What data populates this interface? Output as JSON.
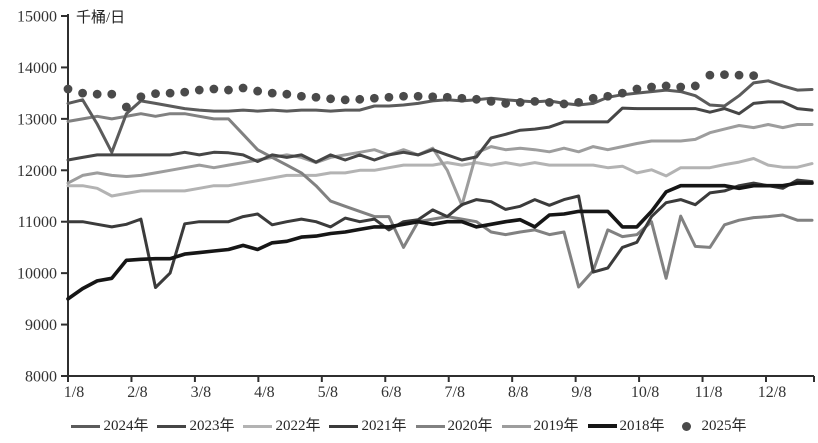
{
  "chart_data": {
    "type": "line",
    "title": "千桶/日",
    "xlabel": "",
    "ylabel": "千桶/日",
    "ylim": [
      8000,
      15000
    ],
    "y_ticks": [
      8000,
      9000,
      10000,
      11000,
      12000,
      13000,
      14000,
      15000
    ],
    "x_tick_labels": [
      "1/8",
      "2/8",
      "3/8",
      "4/8",
      "5/8",
      "6/8",
      "7/8",
      "8/8",
      "9/8",
      "10/8",
      "11/8",
      "12/8"
    ],
    "x_is_weekly": true,
    "weeks_total": 52,
    "grid": false,
    "legend_position": "bottom",
    "axis_color": "#2f2f2f",
    "tick_label_color": "#333333",
    "series": [
      {
        "name": "2024年",
        "color": "#5b5b5b",
        "style": "line",
        "width": 3,
        "values": [
          13300,
          13370,
          12900,
          12350,
          13100,
          13350,
          13300,
          13250,
          13200,
          13170,
          13150,
          13150,
          13170,
          13150,
          13170,
          13150,
          13170,
          13170,
          13150,
          13170,
          13170,
          13250,
          13250,
          13270,
          13300,
          13350,
          13370,
          13350,
          13370,
          13400,
          13370,
          13350,
          13330,
          13350,
          13300,
          13270,
          13300,
          13420,
          13470,
          13500,
          13530,
          13560,
          13530,
          13450,
          13270,
          13250,
          13450,
          13700,
          13740,
          13640,
          13560,
          13570
        ]
      },
      {
        "name": "2023年",
        "color": "#464646",
        "style": "line",
        "width": 3,
        "values": [
          12200,
          12250,
          12300,
          12300,
          12300,
          12300,
          12300,
          12300,
          12350,
          12300,
          12350,
          12340,
          12300,
          12170,
          12300,
          12250,
          12300,
          12160,
          12300,
          12200,
          12300,
          12200,
          12300,
          12350,
          12300,
          12400,
          12300,
          12200,
          12260,
          12630,
          12700,
          12780,
          12800,
          12840,
          12940,
          12940,
          12940,
          12940,
          13210,
          13200,
          13200,
          13200,
          13200,
          13200,
          13130,
          13200,
          13100,
          13300,
          13330,
          13330,
          13200,
          13170
        ]
      },
      {
        "name": "2022年",
        "color": "#b3b3b3",
        "style": "line",
        "width": 3,
        "values": [
          11700,
          11700,
          11650,
          11500,
          11550,
          11600,
          11600,
          11600,
          11600,
          11650,
          11700,
          11700,
          11750,
          11800,
          11850,
          11900,
          11900,
          11900,
          11950,
          11950,
          12000,
          12000,
          12050,
          12100,
          12100,
          12100,
          12150,
          12100,
          12150,
          12100,
          12150,
          12100,
          12150,
          12100,
          12100,
          12100,
          12100,
          12050,
          12080,
          11950,
          12010,
          11890,
          12050,
          12050,
          12050,
          12110,
          12160,
          12230,
          12100,
          12060,
          12060,
          12130
        ]
      },
      {
        "name": "2021年",
        "color": "#3b3b3b",
        "style": "line",
        "width": 3,
        "values": [
          11000,
          11000,
          10950,
          10900,
          10950,
          11050,
          9720,
          10000,
          10960,
          11000,
          11000,
          11000,
          11100,
          11150,
          10940,
          11000,
          11050,
          11000,
          10900,
          11070,
          11000,
          11050,
          10840,
          11000,
          11040,
          11230,
          11100,
          11330,
          11430,
          11390,
          11240,
          11300,
          11430,
          11320,
          11430,
          11500,
          10020,
          10100,
          10500,
          10600,
          11100,
          11370,
          11430,
          11330,
          11560,
          11600,
          11700,
          11750,
          11700,
          11650,
          11810,
          11780
        ]
      },
      {
        "name": "2020年",
        "color": "#818181",
        "style": "line",
        "width": 3,
        "values": [
          12950,
          13000,
          13050,
          13000,
          13050,
          13100,
          13050,
          13100,
          13100,
          13050,
          13000,
          13000,
          12700,
          12400,
          12250,
          12100,
          11950,
          11700,
          11400,
          11300,
          11200,
          11100,
          11100,
          10500,
          11000,
          11050,
          11100,
          11050,
          11000,
          10800,
          10750,
          10800,
          10840,
          10750,
          10800,
          9730,
          10050,
          10840,
          10710,
          10750,
          11000,
          9900,
          11110,
          10520,
          10500,
          10940,
          11030,
          11080,
          11100,
          11130,
          11030,
          11030
        ]
      },
      {
        "name": "2019年",
        "color": "#9d9d9d",
        "style": "line",
        "width": 3,
        "values": [
          11750,
          11900,
          11950,
          11900,
          11880,
          11900,
          11950,
          12000,
          12050,
          12100,
          12050,
          12100,
          12150,
          12200,
          12250,
          12300,
          12250,
          12150,
          12250,
          12300,
          12350,
          12400,
          12300,
          12400,
          12300,
          12430,
          12000,
          11320,
          12340,
          12460,
          12400,
          12430,
          12400,
          12360,
          12430,
          12360,
          12460,
          12400,
          12460,
          12520,
          12570,
          12570,
          12570,
          12600,
          12730,
          12800,
          12870,
          12830,
          12890,
          12830,
          12890,
          12890
        ]
      },
      {
        "name": "2018年",
        "color": "#161616",
        "style": "line",
        "width": 3.6,
        "values": [
          9500,
          9700,
          9850,
          9900,
          10250,
          10270,
          10280,
          10280,
          10370,
          10400,
          10430,
          10460,
          10540,
          10460,
          10590,
          10620,
          10700,
          10720,
          10770,
          10800,
          10850,
          10900,
          10900,
          10950,
          11000,
          10950,
          11000,
          11000,
          10900,
          10950,
          11000,
          11040,
          10900,
          11130,
          11150,
          11200,
          11200,
          11200,
          10900,
          10900,
          11200,
          11580,
          11700,
          11700,
          11700,
          11700,
          11650,
          11700,
          11700,
          11700,
          11750,
          11750
        ]
      },
      {
        "name": "2025年",
        "color": "#4a4a4a",
        "style": "dots",
        "radius": 4.4,
        "values": [
          13580,
          13500,
          13480,
          13480,
          13230,
          13430,
          13490,
          13500,
          13520,
          13560,
          13580,
          13560,
          13600,
          13540,
          13500,
          13480,
          13440,
          13420,
          13390,
          13370,
          13380,
          13400,
          13420,
          13440,
          13440,
          13430,
          13420,
          13400,
          13380,
          13340,
          13300,
          13320,
          13340,
          13320,
          13290,
          13320,
          13400,
          13440,
          13500,
          13580,
          13620,
          13640,
          13620,
          13640,
          13850,
          13860,
          13850,
          13840
        ]
      }
    ]
  }
}
